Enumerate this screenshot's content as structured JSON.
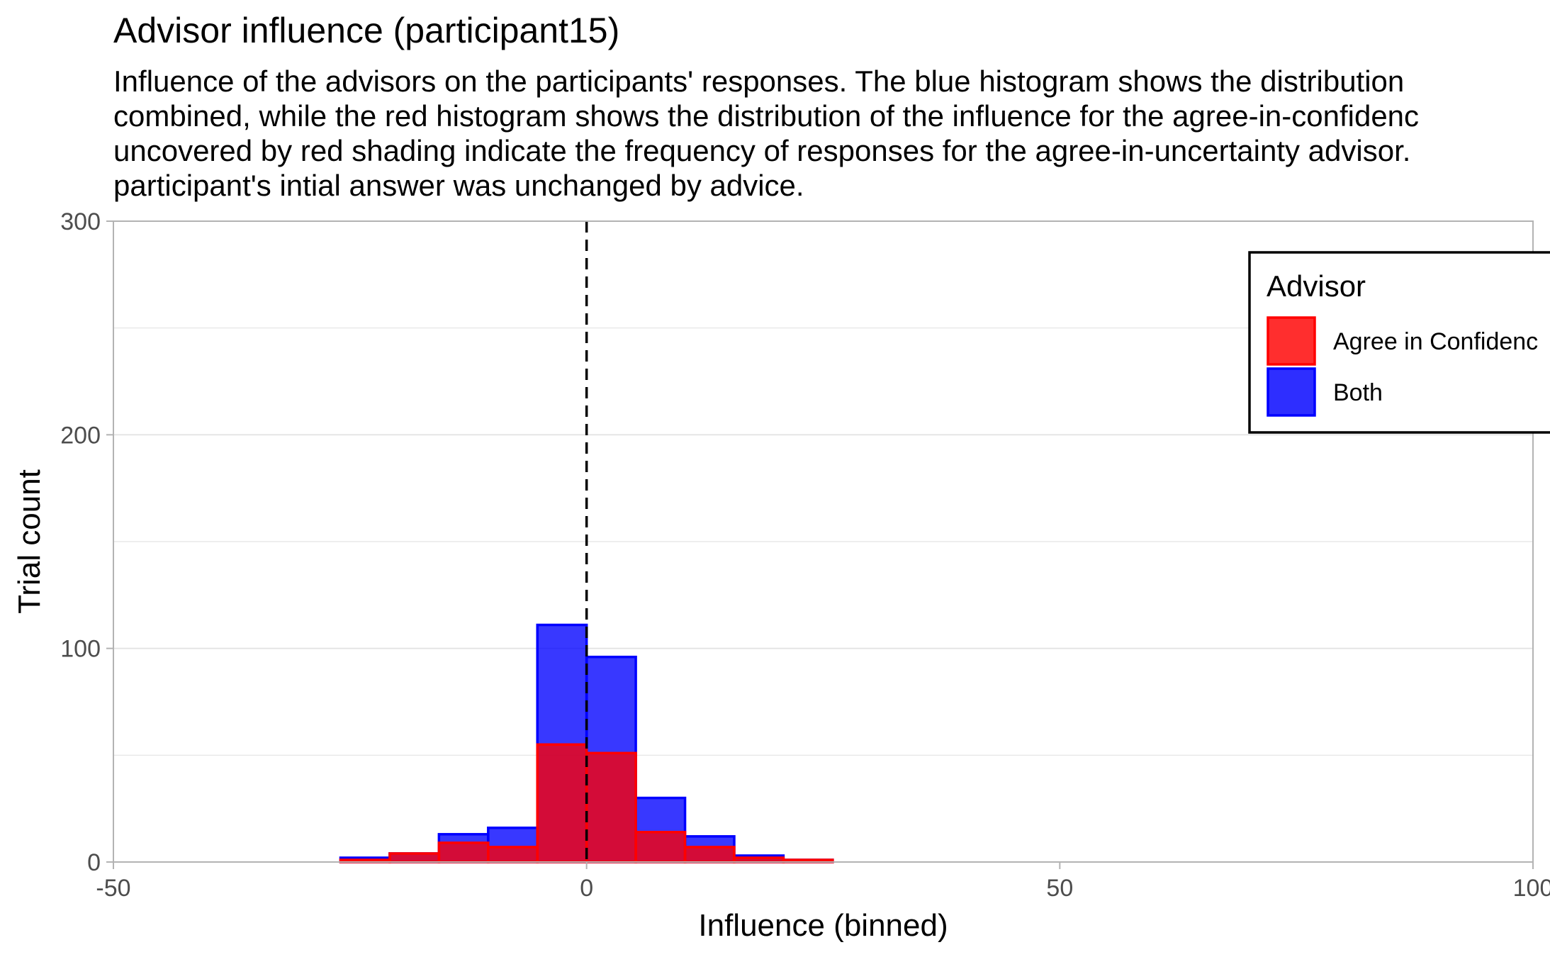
{
  "title": "Advisor influence (participant15)",
  "subtitle_lines": [
    "Influence of the advisors on the participants' responses.  The blue histogram shows the distribution",
    "combined, while the red histogram shows the distribution of the influence for the agree-in-confidenc",
    "uncovered by red shading indicate the frequency of responses for the agree-in-uncertainty advisor.",
    "participant's intial answer was unchanged by advice."
  ],
  "colors": {
    "both": "#0000ff",
    "agree_in_confidence": "#ff0000",
    "gridline": "#e3e3e3",
    "axis": "#b3b3b3",
    "vline": "#000000"
  },
  "chart_data": {
    "type": "bar",
    "title": "Advisor influence (participant15)",
    "xlabel": "Influence (binned)",
    "ylabel": "Trial count",
    "xlim": [
      -50,
      100
    ],
    "ylim": [
      0,
      300
    ],
    "x_ticks": [
      -50,
      0,
      50,
      100
    ],
    "x_tick_labels": [
      "-50",
      "0",
      "50",
      "100"
    ],
    "y_ticks": [
      0,
      100,
      200,
      300
    ],
    "y_tick_labels": [
      "0",
      "100",
      "200",
      "300"
    ],
    "y_minor_gridlines": [
      50,
      150,
      250
    ],
    "grid": true,
    "vline_x": 0,
    "bin_width": 5.2,
    "legend": {
      "title": "Advisor",
      "position": "top-right",
      "entries": [
        "Agree in Confidenc",
        "Both"
      ]
    },
    "series": [
      {
        "name": "Both",
        "color": "#0000ff",
        "bins": [
          {
            "x": -23.4,
            "count": 2
          },
          {
            "x": -18.2,
            "count": 4
          },
          {
            "x": -13.0,
            "count": 13
          },
          {
            "x": -7.8,
            "count": 16
          },
          {
            "x": -2.6,
            "count": 111
          },
          {
            "x": 2.6,
            "count": 96
          },
          {
            "x": 7.8,
            "count": 30
          },
          {
            "x": 13.0,
            "count": 12
          },
          {
            "x": 18.2,
            "count": 3
          },
          {
            "x": 23.4,
            "count": 1
          }
        ]
      },
      {
        "name": "Agree in Confidenc",
        "color": "#ff0000",
        "bins": [
          {
            "x": -23.4,
            "count": 1
          },
          {
            "x": -18.2,
            "count": 4
          },
          {
            "x": -13.0,
            "count": 9
          },
          {
            "x": -7.8,
            "count": 7
          },
          {
            "x": -2.6,
            "count": 55
          },
          {
            "x": 2.6,
            "count": 51
          },
          {
            "x": 7.8,
            "count": 14
          },
          {
            "x": 13.0,
            "count": 7
          },
          {
            "x": 18.2,
            "count": 2
          },
          {
            "x": 23.4,
            "count": 1
          }
        ]
      }
    ]
  }
}
